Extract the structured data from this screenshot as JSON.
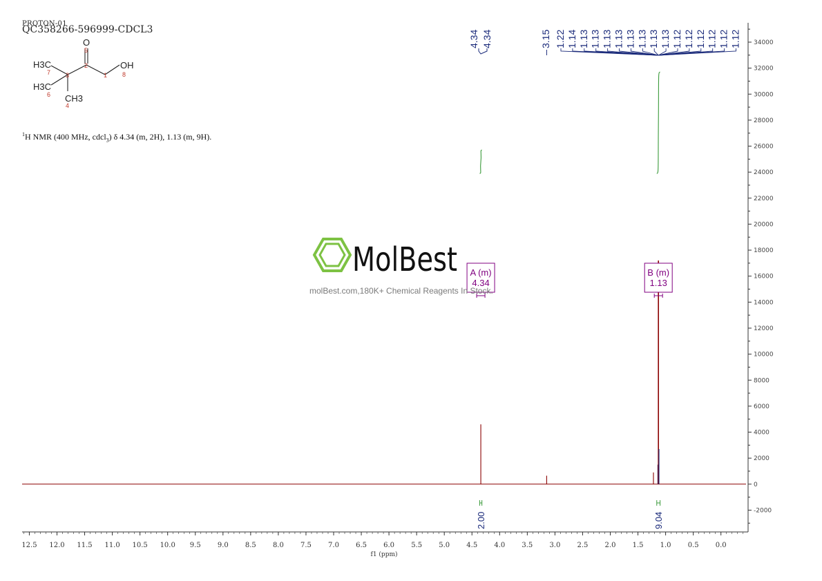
{
  "header": {
    "experiment": "PROTON-01",
    "sample_id": "QC358266-596999-CDCL3"
  },
  "structure": {
    "atoms": [
      {
        "label": "O",
        "num": "5"
      },
      {
        "label": "H3C",
        "num": "7"
      },
      {
        "label": "H3C",
        "num": "6"
      },
      {
        "label": "CH3",
        "num": "4"
      },
      {
        "label": "OH",
        "num": "8"
      },
      {
        "label": "",
        "num": "3"
      },
      {
        "label": "",
        "num": "2"
      },
      {
        "label": "",
        "num": "1"
      }
    ]
  },
  "nmr_description": {
    "nucleus_mass": "1",
    "nucleus": "H NMR (400 MHz, cdcl",
    "solvent_sub": "3",
    "rest": ") δ 4.34 (m, 2H), 1.13 (m, 9H)."
  },
  "watermark": {
    "brand": "MolBest",
    "tagline": "molBest.com,180K+ Chemical Reagents In Stock."
  },
  "colors": {
    "spectrum": "#8b0000",
    "peak_labels": "#1a2a7a",
    "integral": "#3a9a3a",
    "multiplet_box": "#800080",
    "axis": "#333333",
    "logo_green": "#7dc243"
  },
  "chart_data": {
    "type": "line",
    "xlabel": "f1 (ppm)",
    "ylabel": "",
    "xlim": [
      12.7,
      -0.5
    ],
    "ylim": [
      -3500,
      35000
    ],
    "x_ticks": [
      "12.5",
      "12.0",
      "11.5",
      "11.0",
      "10.5",
      "10.0",
      "9.5",
      "9.0",
      "8.5",
      "8.0",
      "7.5",
      "7.0",
      "6.5",
      "6.0",
      "5.5",
      "5.0",
      "4.5",
      "4.0",
      "3.5",
      "3.0",
      "2.5",
      "2.0",
      "1.5",
      "1.0",
      "0.5",
      "0.0"
    ],
    "y_ticks": [
      "34000",
      "32000",
      "30000",
      "28000",
      "26000",
      "24000",
      "22000",
      "20000",
      "18000",
      "16000",
      "14000",
      "12000",
      "10000",
      "8000",
      "6000",
      "4000",
      "2000",
      "0",
      "-2000"
    ],
    "peaks": [
      {
        "ppm": 4.34,
        "height": 4600
      },
      {
        "ppm": 3.15,
        "height": 650
      },
      {
        "ppm": 1.22,
        "height": 900
      },
      {
        "ppm": 1.14,
        "height": 1500
      },
      {
        "ppm": 1.13,
        "height": 17200
      },
      {
        "ppm": 1.12,
        "height": 2700
      }
    ],
    "peak_labels": [
      {
        "group": "A",
        "labels": [
          "4.34",
          "4.34"
        ]
      },
      {
        "group": "B",
        "labels": [
          "3.15"
        ]
      },
      {
        "group": "C",
        "labels": [
          "1.22",
          "1.14",
          "1.13",
          "1.13",
          "1.13",
          "1.13",
          "1.13",
          "1.13",
          "1.13",
          "1.13",
          "1.12",
          "1.12",
          "1.12",
          "1.12",
          "1.12",
          "1.12"
        ]
      }
    ],
    "integrals": [
      {
        "from": 4.36,
        "to": 4.32,
        "value": "2.00",
        "y_start": 23900,
        "y_end": 25700
      },
      {
        "from": 1.16,
        "to": 1.1,
        "value": "9.04",
        "y_start": 23900,
        "y_end": 31700
      }
    ],
    "multiplets": [
      {
        "name": "A (m)",
        "shift": "4.34",
        "ppm": 4.34
      },
      {
        "name": "B (m)",
        "shift": "1.13",
        "ppm": 1.13
      }
    ]
  }
}
